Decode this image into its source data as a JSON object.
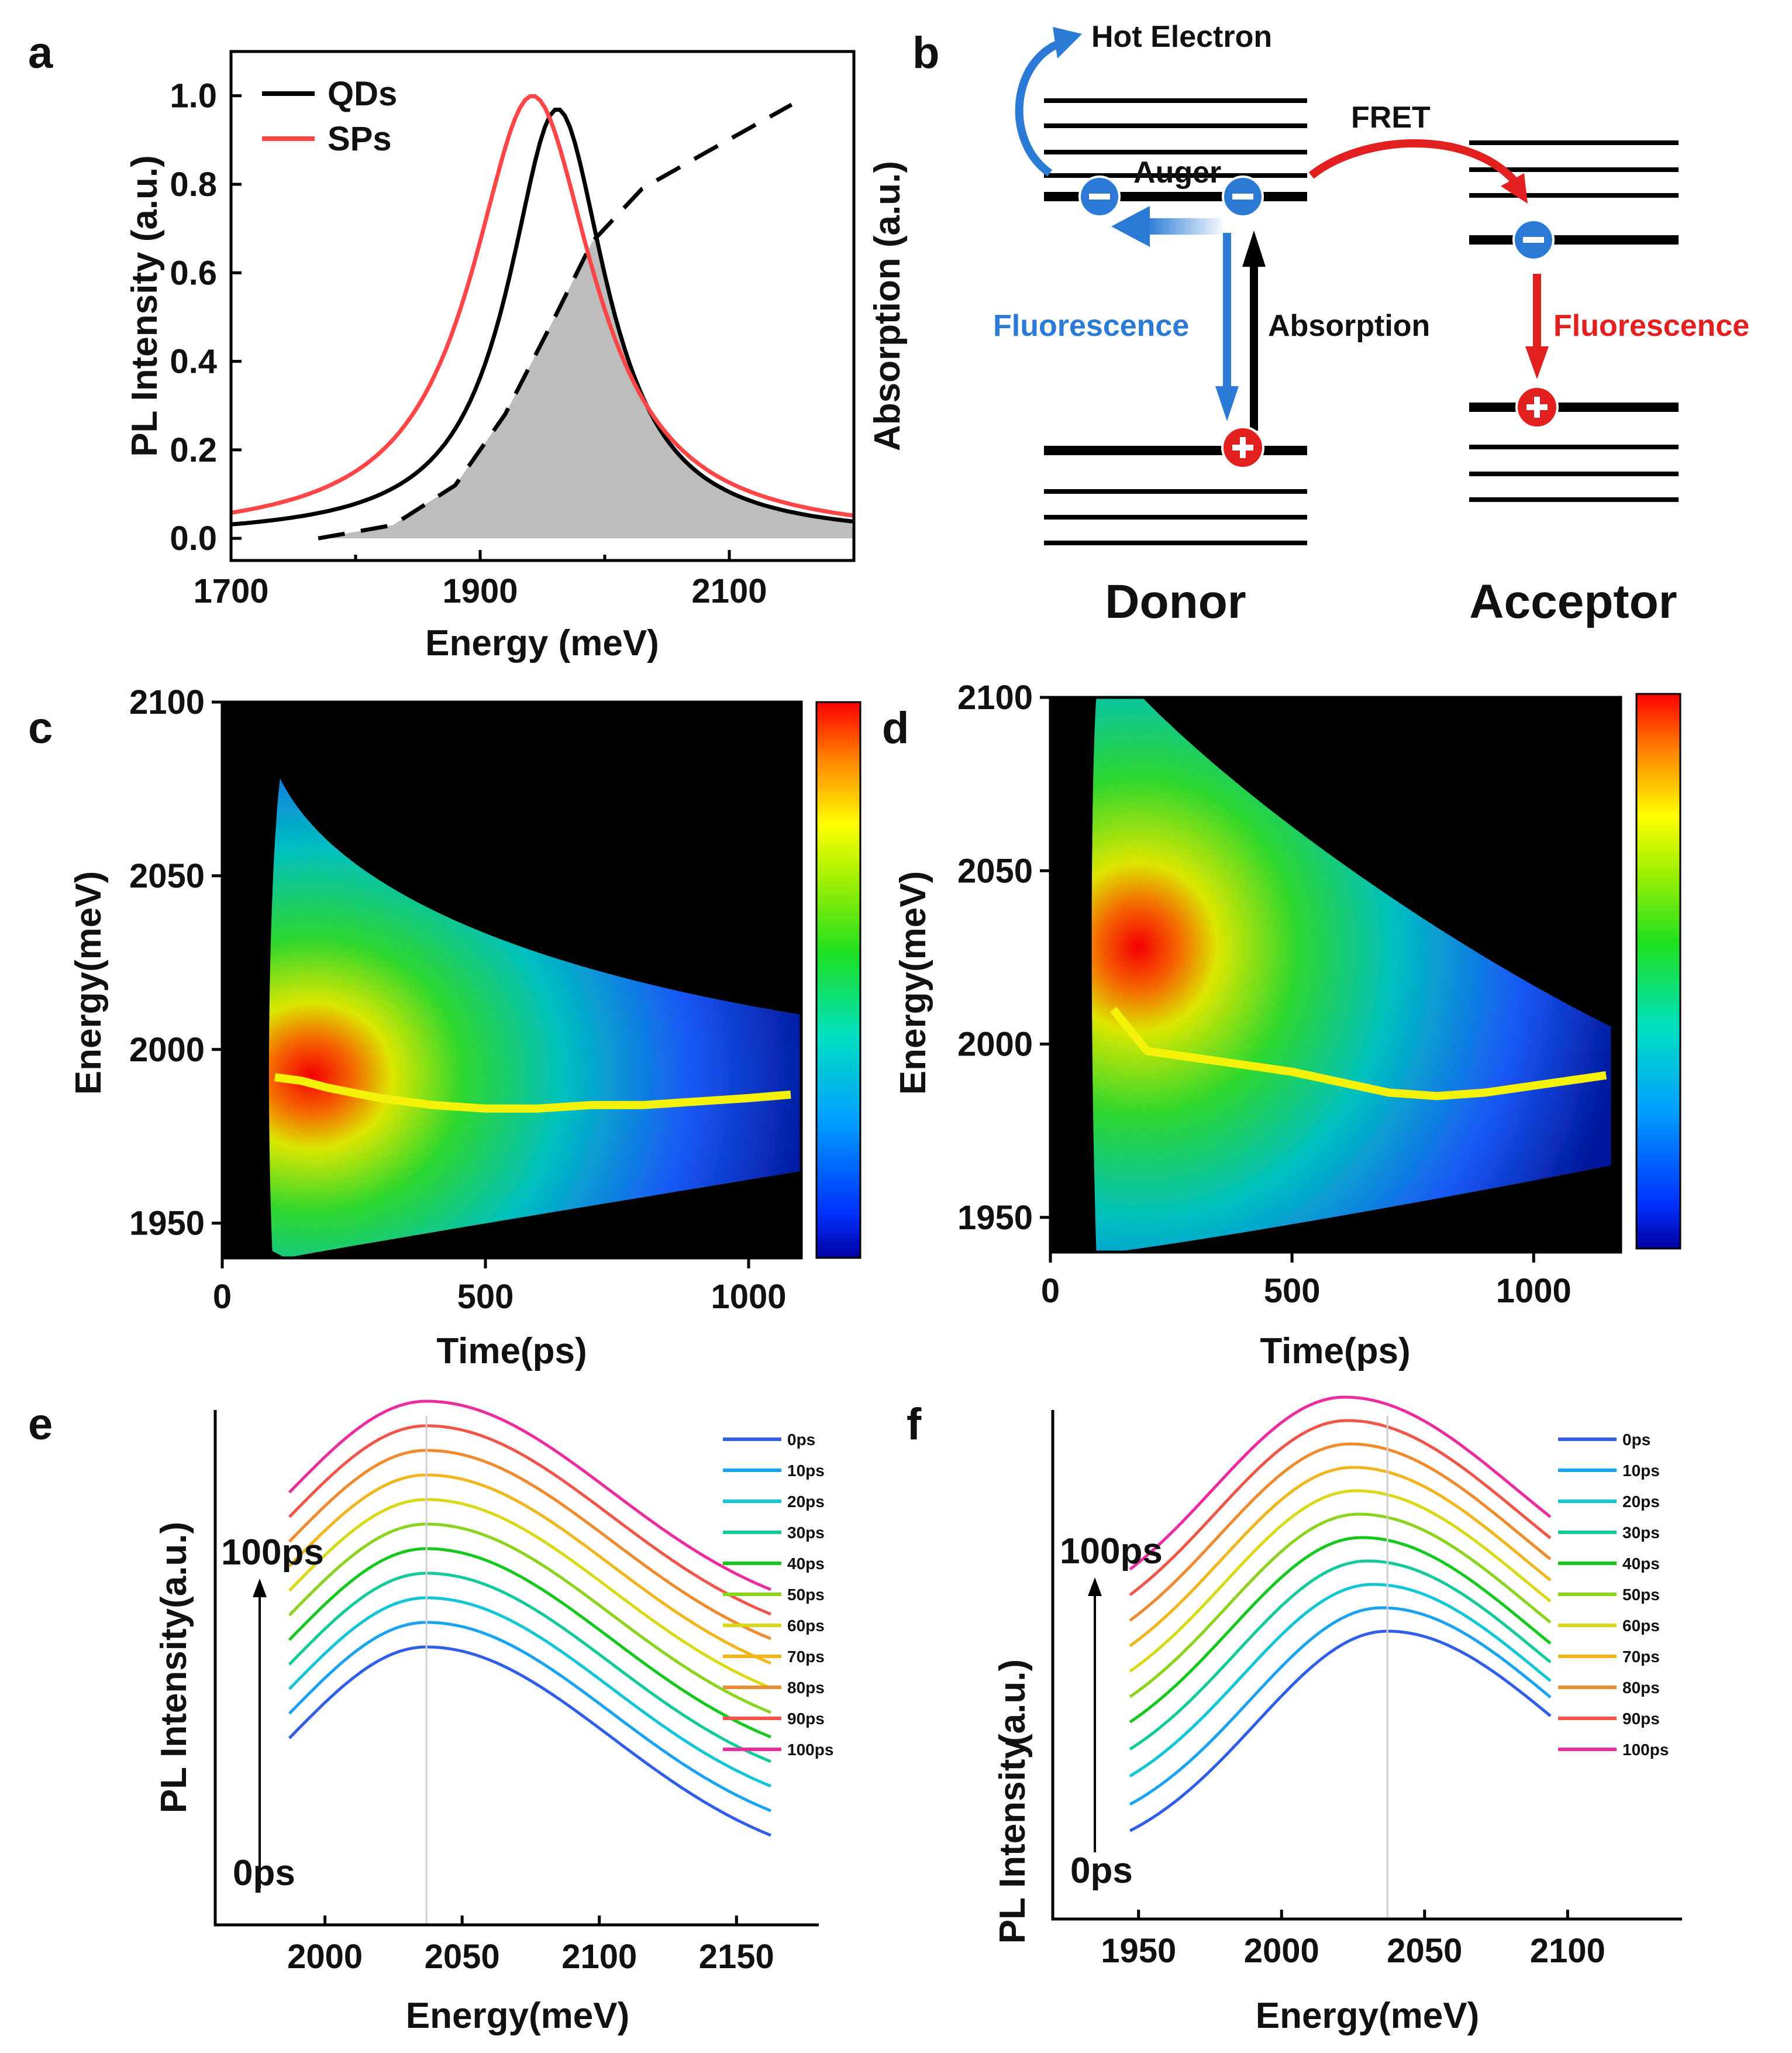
{
  "panel_labels": {
    "a": "a",
    "b": "b",
    "c": "c",
    "d": "d",
    "e": "e",
    "f": "f"
  },
  "colors": {
    "qds": "#000000",
    "sps": "#ff4545",
    "absorption": "#000000",
    "fill": "#bdbdbd",
    "blue": "#2b7bd6",
    "red": "#e32020",
    "yellow": "#f5f20a"
  },
  "chart_data": [
    {
      "id": "a",
      "type": "line",
      "xlabel": "Energy (meV)",
      "ylabel": "PL Intensity (a.u.)",
      "ylabel_right": "Absorption (a.u.)",
      "xlim": [
        1700,
        2200
      ],
      "ylim": [
        -0.05,
        1.1
      ],
      "xticks": [
        "1700",
        "1900",
        "2100"
      ],
      "yticks": [
        "0.0",
        "0.2",
        "0.4",
        "0.6",
        "0.8",
        "1.0"
      ],
      "legend": [
        "QDs",
        "SPs"
      ],
      "series": [
        {
          "name": "QDs",
          "peak": 1962,
          "width": 48
        },
        {
          "name": "SPs",
          "peak": 1942,
          "width": 60
        },
        {
          "name": "Absorption",
          "style": "dashed",
          "x": [
            1770,
            1830,
            1880,
            1920,
            1960,
            1990,
            2030,
            2080,
            2150
          ],
          "y": [
            0.0,
            0.03,
            0.12,
            0.28,
            0.5,
            0.67,
            0.79,
            0.87,
            0.98
          ]
        }
      ]
    },
    {
      "id": "b",
      "type": "diagram",
      "labels": {
        "hot_electron": "Hot Electron",
        "auger": "Auger",
        "fret": "FRET",
        "fluorescence_donor": "Fluorescence",
        "absorption": "Absorption",
        "fluorescence_acceptor": "Fluorescence",
        "donor": "Donor",
        "acceptor": "Acceptor"
      }
    },
    {
      "id": "c",
      "type": "heatmap",
      "xlabel": "Time(ps)",
      "ylabel": "Energy(meV)",
      "xlim": [
        0,
        1100
      ],
      "ylim": [
        1940,
        2100
      ],
      "xticks": [
        "0",
        "500",
        "1000"
      ],
      "yticks": [
        "1950",
        "2000",
        "2050",
        "2100"
      ],
      "peak_trace": {
        "x": [
          100,
          150,
          200,
          300,
          400,
          500,
          600,
          700,
          800,
          900,
          1000,
          1080
        ],
        "y": [
          1992,
          1991,
          1989,
          1986,
          1984,
          1983,
          1983,
          1984,
          1984,
          1985,
          1986,
          1987
        ]
      }
    },
    {
      "id": "d",
      "type": "heatmap",
      "xlabel": "Time(ps)",
      "ylabel": "Energy(meV)",
      "xlim": [
        0,
        1180
      ],
      "ylim": [
        1940,
        2100
      ],
      "xticks": [
        "0",
        "500",
        "1000"
      ],
      "yticks": [
        "1950",
        "2000",
        "2050",
        "2100"
      ],
      "peak_trace": {
        "x": [
          130,
          200,
          300,
          400,
          500,
          600,
          700,
          800,
          900,
          1000,
          1100,
          1150
        ],
        "y": [
          2010,
          1998,
          1996,
          1994,
          1992,
          1989,
          1986,
          1985,
          1986,
          1988,
          1990,
          1991
        ]
      }
    },
    {
      "id": "e",
      "type": "line",
      "xlabel": "Energy(meV)",
      "ylabel": "PL Intensity(a.u.)",
      "xlim": [
        1960,
        2180
      ],
      "xticks": [
        "2000",
        "2050",
        "2100",
        "2150"
      ],
      "arrow_top": "100ps",
      "arrow_bottom": "0ps",
      "x_start": 1987,
      "x_end": 2163,
      "peak": 2037,
      "legend": [
        "0ps",
        "10ps",
        "20ps",
        "30ps",
        "40ps",
        "50ps",
        "60ps",
        "70ps",
        "80ps",
        "90ps",
        "100ps"
      ]
    },
    {
      "id": "f",
      "type": "line",
      "xlabel": "Energy(meV)",
      "ylabel": "PL Intensity",
      "ylabel_unit": "(a.u.)",
      "xlim": [
        1920,
        2140
      ],
      "xticks": [
        "1950",
        "2000",
        "2050",
        "2100"
      ],
      "arrow_top": "100ps",
      "arrow_bottom": "0ps",
      "x_start": 1947,
      "x_end": 2094,
      "peaks": [
        2037,
        2035,
        2032,
        2030,
        2028,
        2027,
        2026,
        2025,
        2024,
        2023,
        2022
      ],
      "legend": [
        "0ps",
        "10ps",
        "20ps",
        "30ps",
        "40ps",
        "50ps",
        "60ps",
        "70ps",
        "80ps",
        "90ps",
        "100ps"
      ]
    }
  ],
  "curve_colors": [
    "#2f5fe8",
    "#1ba3f0",
    "#12c6d6",
    "#14c99a",
    "#14c81e",
    "#8ad41e",
    "#d9d91a",
    "#f1b51e",
    "#f08a2e",
    "#f0554a",
    "#ec2c9e"
  ]
}
